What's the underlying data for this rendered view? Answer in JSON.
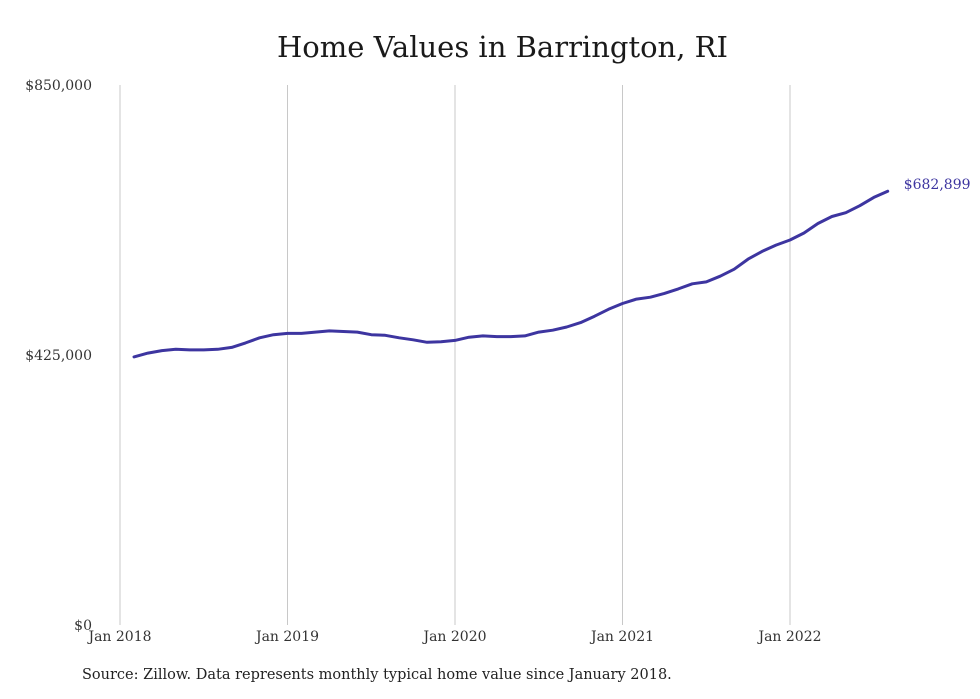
{
  "chart_data": {
    "type": "line",
    "title": "Home Values in Barrington, RI",
    "xlabel": "",
    "ylabel": "",
    "x_start": "2018-01",
    "x_ticks": [
      "Jan 2018",
      "Jan 2019",
      "Jan 2020",
      "Jan 2021",
      "Jan 2022"
    ],
    "y_ticks": [
      "$0",
      "$425,000",
      "$850,000"
    ],
    "ylim": [
      0,
      850000
    ],
    "grid": "vertical",
    "legend": "none",
    "end_label": "$682,899",
    "color": "#3d35a0",
    "series": [
      {
        "values": [
          422000,
          428000,
          432000,
          434000,
          433000,
          433000,
          434000,
          437000,
          444000,
          452000,
          457000,
          459000,
          459000,
          461000,
          463000,
          462000,
          461000,
          457000,
          456000,
          452000,
          449000,
          445000,
          446000,
          448000,
          453000,
          455000,
          454000,
          454000,
          455000,
          461000,
          464000,
          469000,
          476000,
          486000,
          497000,
          506000,
          513000,
          516000,
          522000,
          529000,
          537000,
          540000,
          549000,
          560000,
          576000,
          588000,
          598000,
          606000,
          617000,
          632000,
          643000,
          649000,
          660000,
          673000,
          682899
        ]
      }
    ]
  },
  "source": "Source: Zillow. Data represents monthly typical home value since January 2018."
}
